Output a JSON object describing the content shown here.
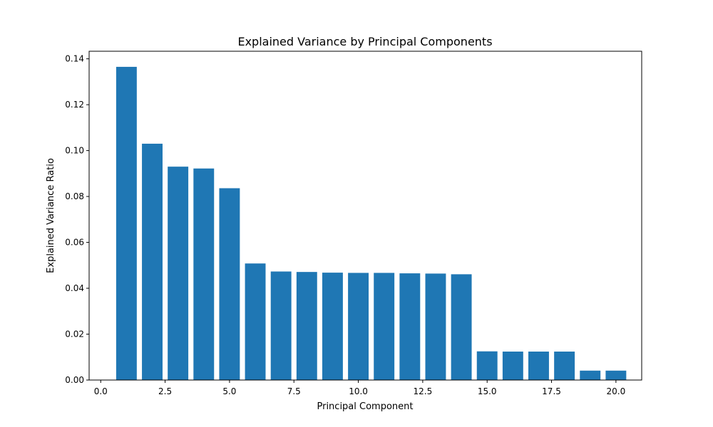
{
  "chart_data": {
    "type": "bar",
    "title": "Explained Variance by Principal Components",
    "xlabel": "Principal Component",
    "ylabel": "Explained Variance Ratio",
    "x": [
      1,
      2,
      3,
      4,
      5,
      6,
      7,
      8,
      9,
      10,
      11,
      12,
      13,
      14,
      15,
      16,
      17,
      18,
      19,
      20
    ],
    "values": [
      0.1365,
      0.103,
      0.093,
      0.0922,
      0.0836,
      0.0508,
      0.0473,
      0.0471,
      0.0468,
      0.0467,
      0.0467,
      0.0465,
      0.0464,
      0.0461,
      0.0125,
      0.0124,
      0.0124,
      0.0124,
      0.0041,
      0.0041
    ],
    "bar_width": 0.8,
    "xlim": [
      -0.45,
      21.0
    ],
    "ylim": [
      0,
      0.1433
    ],
    "xticks": [
      0.0,
      2.5,
      5.0,
      7.5,
      10.0,
      12.5,
      15.0,
      17.5,
      20.0
    ],
    "xtick_labels": [
      "0.0",
      "2.5",
      "5.0",
      "7.5",
      "10.0",
      "12.5",
      "15.0",
      "17.5",
      "20.0"
    ],
    "yticks": [
      0.0,
      0.02,
      0.04,
      0.06,
      0.08,
      0.1,
      0.12,
      0.14
    ],
    "ytick_labels": [
      "0.00",
      "0.02",
      "0.04",
      "0.06",
      "0.08",
      "0.10",
      "0.12",
      "0.14"
    ],
    "grid": false,
    "bar_color": "#1f77b4"
  }
}
